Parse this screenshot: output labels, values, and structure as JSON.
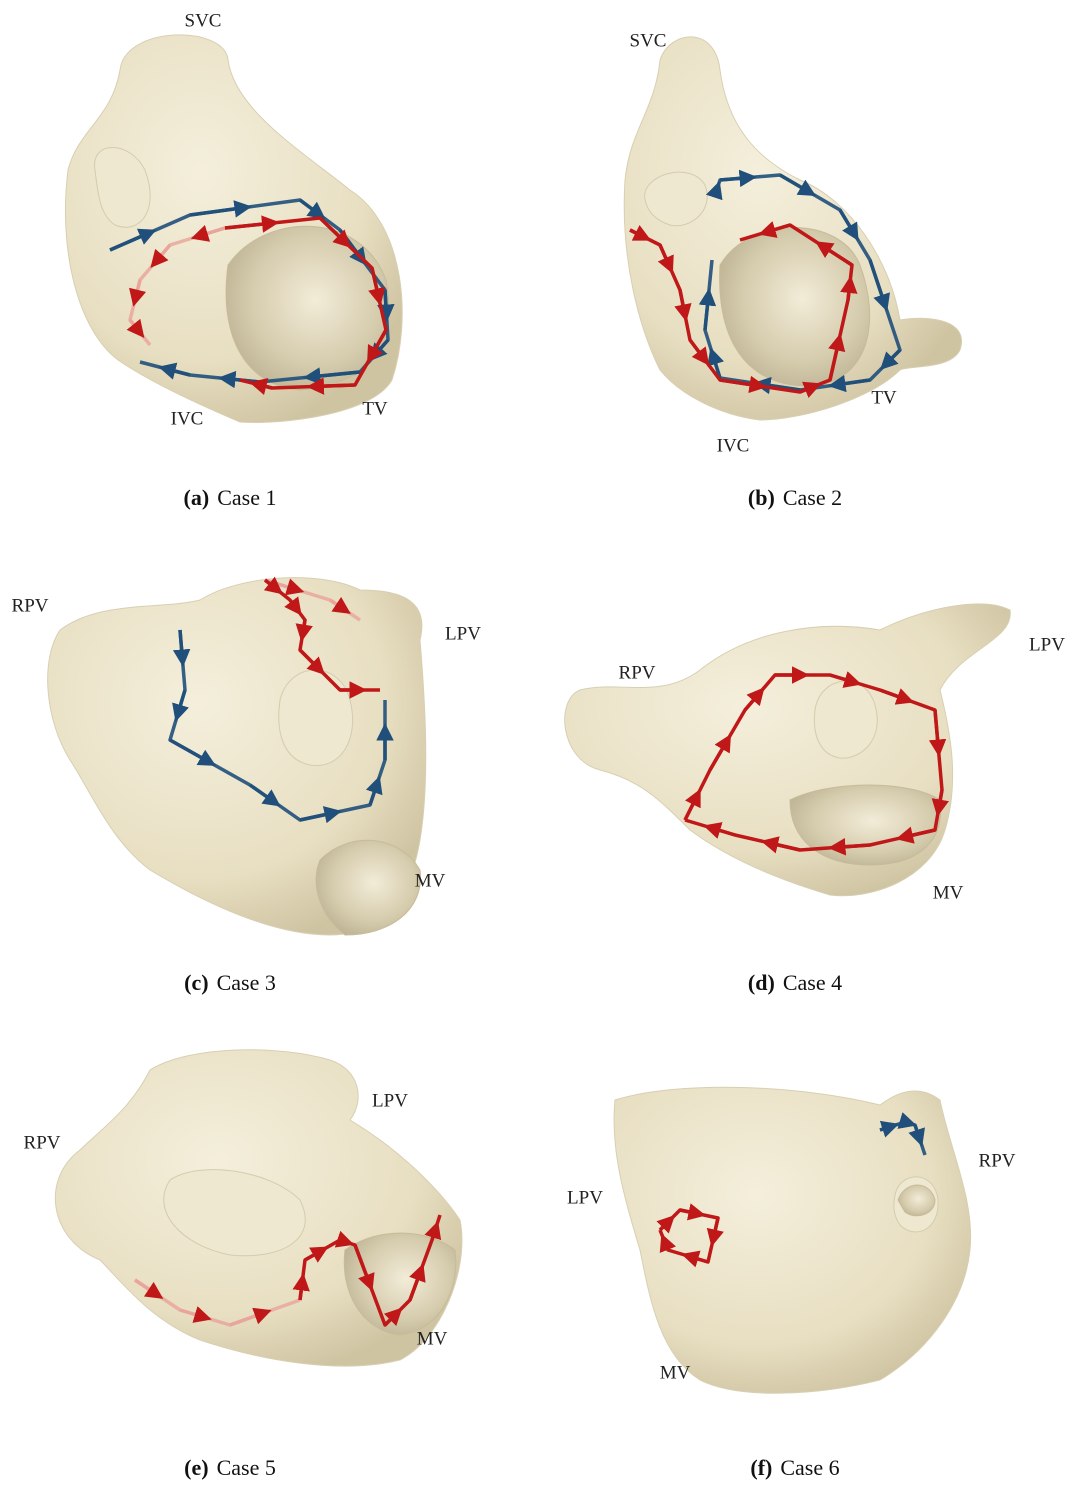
{
  "panels": [
    {
      "letter": "(a)",
      "caption": "Case 1",
      "labels": [
        "SVC",
        "IVC",
        "TV"
      ]
    },
    {
      "letter": "(b)",
      "caption": "Case 2",
      "labels": [
        "SVC",
        "IVC",
        "TV"
      ]
    },
    {
      "letter": "(c)",
      "caption": "Case 3",
      "labels": [
        "RPV",
        "LPV",
        "MV"
      ]
    },
    {
      "letter": "(d)",
      "caption": "Case 4",
      "labels": [
        "RPV",
        "LPV",
        "MV"
      ]
    },
    {
      "letter": "(e)",
      "caption": "Case 5",
      "labels": [
        "RPV",
        "LPV",
        "MV"
      ]
    },
    {
      "letter": "(f)",
      "caption": "Case 6",
      "labels": [
        "LPV",
        "RPV",
        "MV"
      ]
    }
  ]
}
